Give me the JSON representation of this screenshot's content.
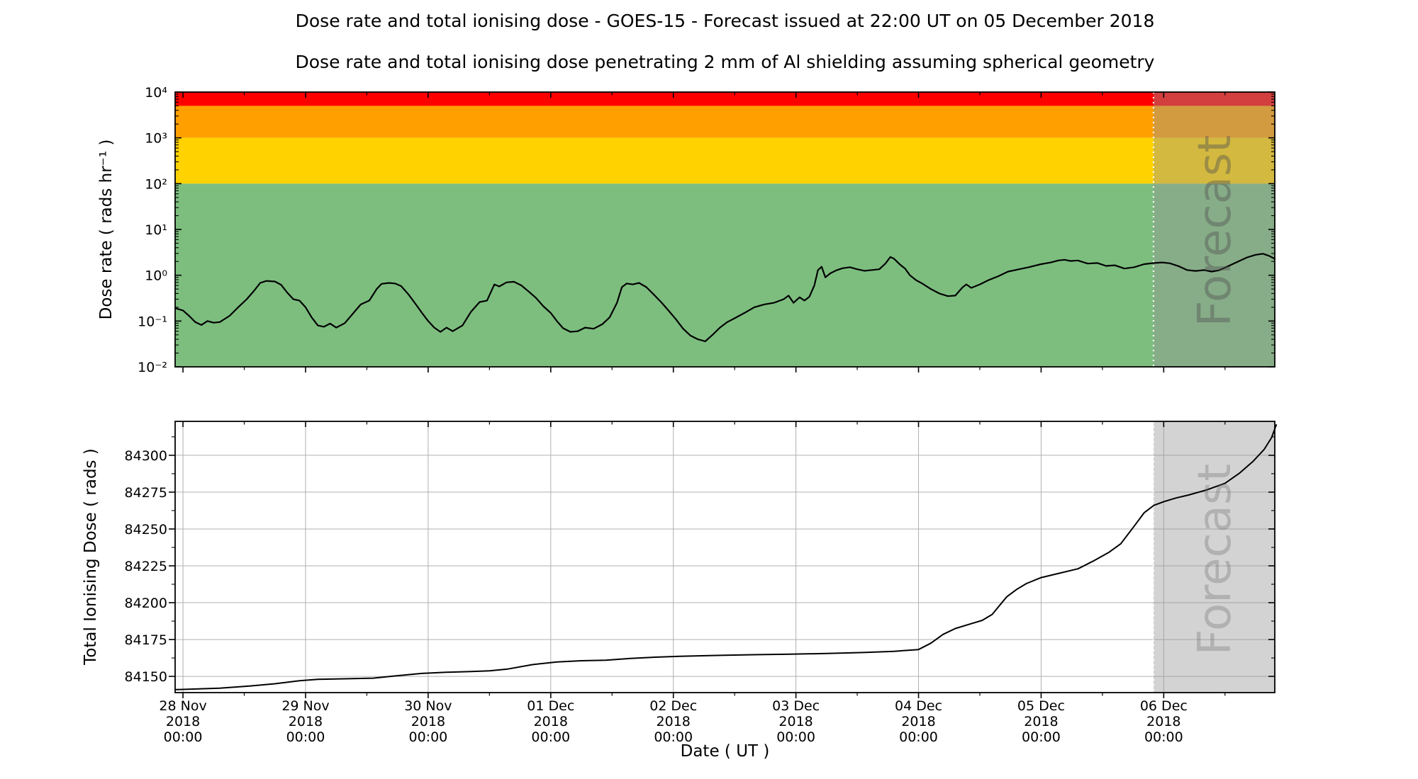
{
  "figure": {
    "title": "Dose rate and total ionising dose - GOES-15 - Forecast issued at 22:00 UT on 05 December 2018",
    "subtitle": "Dose rate and total ionising dose penetrating 2 mm of Al shielding assuming spherical geometry",
    "xlabel": "Date ( UT )",
    "forecast_label": "Forecast",
    "forecast_start_days": 7.9167,
    "x_axis": {
      "xlim_days": [
        -0.064,
        8.906
      ],
      "tick_days": [
        0,
        1,
        2,
        3,
        4,
        5,
        6,
        7,
        8
      ],
      "tick_labels": [
        "28 Nov\n2018\n00:00",
        "29 Nov\n2018\n00:00",
        "30 Nov\n2018\n00:00",
        "01 Dec\n2018\n00:00",
        "02 Dec\n2018\n00:00",
        "03 Dec\n2018\n00:00",
        "04 Dec\n2018\n00:00",
        "05 Dec\n2018\n00:00",
        "06 Dec\n2018\n00:00"
      ],
      "minor_tick_days": [
        0.5,
        1.5,
        2.5,
        3.5,
        4.5,
        5.5,
        6.5,
        7.5,
        8.5
      ]
    },
    "colors": {
      "red_band": "#ff0000",
      "orange_band": "#ff9f00",
      "yellow_band": "#ffd200",
      "green_band": "#7dbe7f",
      "forecast_overlay": "rgba(150,150,150,0.42)",
      "forecast_boundary": "#ffffff",
      "gridline": "#b0b0b0",
      "data_line": "#000000",
      "spine": "#000000"
    }
  },
  "chart_data": [
    {
      "type": "line",
      "name": "dose_rate",
      "ylabel": "Dose rate ( rads hr⁻¹ )",
      "yscale": "log",
      "ylim": [
        0.01,
        10000
      ],
      "ytick_values": [
        10000,
        1000,
        100,
        10,
        1,
        0.1,
        0.01
      ],
      "ytick_labels": [
        "10⁴",
        "10³",
        "10²",
        "10¹",
        "10⁰",
        "10⁻¹",
        "10⁻²"
      ],
      "x_unit": "days since 28 Nov 2018 00:00 UT",
      "alert_bands": [
        {
          "name": "red",
          "from": 5000,
          "to": 10000,
          "color": "#ff0000"
        },
        {
          "name": "orange",
          "from": 1000,
          "to": 5000,
          "color": "#ff9f00"
        },
        {
          "name": "yellow",
          "from": 100,
          "to": 1000,
          "color": "#ffd200"
        },
        {
          "name": "green",
          "from": 0.01,
          "to": 100,
          "color": "#7dbe7f"
        }
      ],
      "points": [
        [
          -0.06,
          0.19
        ],
        [
          0,
          0.17
        ],
        [
          0.05,
          0.13
        ],
        [
          0.1,
          0.095
        ],
        [
          0.15,
          0.082
        ],
        [
          0.2,
          0.1
        ],
        [
          0.25,
          0.092
        ],
        [
          0.3,
          0.095
        ],
        [
          0.38,
          0.13
        ],
        [
          0.45,
          0.2
        ],
        [
          0.52,
          0.3
        ],
        [
          0.58,
          0.46
        ],
        [
          0.63,
          0.68
        ],
        [
          0.68,
          0.75
        ],
        [
          0.75,
          0.73
        ],
        [
          0.8,
          0.62
        ],
        [
          0.85,
          0.42
        ],
        [
          0.9,
          0.3
        ],
        [
          0.95,
          0.28
        ],
        [
          1.0,
          0.2
        ],
        [
          1.05,
          0.12
        ],
        [
          1.1,
          0.08
        ],
        [
          1.15,
          0.075
        ],
        [
          1.2,
          0.088
        ],
        [
          1.25,
          0.072
        ],
        [
          1.32,
          0.09
        ],
        [
          1.4,
          0.16
        ],
        [
          1.45,
          0.23
        ],
        [
          1.52,
          0.28
        ],
        [
          1.58,
          0.5
        ],
        [
          1.62,
          0.65
        ],
        [
          1.68,
          0.68
        ],
        [
          1.73,
          0.66
        ],
        [
          1.78,
          0.58
        ],
        [
          1.84,
          0.38
        ],
        [
          1.9,
          0.23
        ],
        [
          1.95,
          0.15
        ],
        [
          2.0,
          0.1
        ],
        [
          2.05,
          0.072
        ],
        [
          2.1,
          0.058
        ],
        [
          2.15,
          0.072
        ],
        [
          2.2,
          0.06
        ],
        [
          2.28,
          0.08
        ],
        [
          2.35,
          0.16
        ],
        [
          2.42,
          0.26
        ],
        [
          2.48,
          0.28
        ],
        [
          2.54,
          0.63
        ],
        [
          2.58,
          0.57
        ],
        [
          2.64,
          0.7
        ],
        [
          2.7,
          0.72
        ],
        [
          2.76,
          0.6
        ],
        [
          2.82,
          0.44
        ],
        [
          2.88,
          0.32
        ],
        [
          2.94,
          0.21
        ],
        [
          3.0,
          0.15
        ],
        [
          3.05,
          0.1
        ],
        [
          3.1,
          0.07
        ],
        [
          3.16,
          0.058
        ],
        [
          3.22,
          0.06
        ],
        [
          3.28,
          0.072
        ],
        [
          3.35,
          0.068
        ],
        [
          3.42,
          0.085
        ],
        [
          3.48,
          0.12
        ],
        [
          3.54,
          0.25
        ],
        [
          3.58,
          0.55
        ],
        [
          3.62,
          0.66
        ],
        [
          3.67,
          0.63
        ],
        [
          3.72,
          0.68
        ],
        [
          3.78,
          0.55
        ],
        [
          3.84,
          0.38
        ],
        [
          3.9,
          0.26
        ],
        [
          3.96,
          0.17
        ],
        [
          4.02,
          0.11
        ],
        [
          4.08,
          0.068
        ],
        [
          4.14,
          0.048
        ],
        [
          4.2,
          0.04
        ],
        [
          4.26,
          0.036
        ],
        [
          4.32,
          0.05
        ],
        [
          4.38,
          0.072
        ],
        [
          4.44,
          0.095
        ],
        [
          4.5,
          0.115
        ],
        [
          4.58,
          0.15
        ],
        [
          4.66,
          0.2
        ],
        [
          4.74,
          0.23
        ],
        [
          4.82,
          0.25
        ],
        [
          4.9,
          0.3
        ],
        [
          4.94,
          0.36
        ],
        [
          4.98,
          0.25
        ],
        [
          5.03,
          0.33
        ],
        [
          5.07,
          0.28
        ],
        [
          5.11,
          0.34
        ],
        [
          5.15,
          0.6
        ],
        [
          5.18,
          1.3
        ],
        [
          5.21,
          1.53
        ],
        [
          5.24,
          0.9
        ],
        [
          5.28,
          1.1
        ],
        [
          5.33,
          1.28
        ],
        [
          5.38,
          1.42
        ],
        [
          5.44,
          1.5
        ],
        [
          5.5,
          1.35
        ],
        [
          5.56,
          1.25
        ],
        [
          5.62,
          1.3
        ],
        [
          5.68,
          1.35
        ],
        [
          5.73,
          1.8
        ],
        [
          5.77,
          2.5
        ],
        [
          5.8,
          2.3
        ],
        [
          5.85,
          1.7
        ],
        [
          5.89,
          1.4
        ],
        [
          5.93,
          1.0
        ],
        [
          5.98,
          0.78
        ],
        [
          6.03,
          0.66
        ],
        [
          6.1,
          0.5
        ],
        [
          6.17,
          0.4
        ],
        [
          6.24,
          0.35
        ],
        [
          6.3,
          0.36
        ],
        [
          6.36,
          0.55
        ],
        [
          6.39,
          0.63
        ],
        [
          6.43,
          0.53
        ],
        [
          6.5,
          0.63
        ],
        [
          6.57,
          0.78
        ],
        [
          6.65,
          0.95
        ],
        [
          6.73,
          1.2
        ],
        [
          6.82,
          1.35
        ],
        [
          6.9,
          1.5
        ],
        [
          7.0,
          1.75
        ],
        [
          7.08,
          1.9
        ],
        [
          7.14,
          2.1
        ],
        [
          7.19,
          2.18
        ],
        [
          7.24,
          2.05
        ],
        [
          7.3,
          2.1
        ],
        [
          7.38,
          1.8
        ],
        [
          7.46,
          1.85
        ],
        [
          7.53,
          1.6
        ],
        [
          7.6,
          1.65
        ],
        [
          7.68,
          1.4
        ],
        [
          7.76,
          1.5
        ],
        [
          7.84,
          1.75
        ],
        [
          7.92,
          1.85
        ],
        [
          7.99,
          1.9
        ],
        [
          8.05,
          1.82
        ],
        [
          8.12,
          1.58
        ],
        [
          8.19,
          1.3
        ],
        [
          8.26,
          1.24
        ],
        [
          8.33,
          1.3
        ],
        [
          8.39,
          1.2
        ],
        [
          8.45,
          1.28
        ],
        [
          8.53,
          1.6
        ],
        [
          8.6,
          1.95
        ],
        [
          8.68,
          2.45
        ],
        [
          8.75,
          2.8
        ],
        [
          8.81,
          2.95
        ],
        [
          8.86,
          2.65
        ],
        [
          8.91,
          2.25
        ]
      ]
    },
    {
      "type": "line",
      "name": "total_ionising_dose",
      "ylabel": "Total Ionising Dose ( rads )",
      "yscale": "linear",
      "ylim": [
        84139,
        84323
      ],
      "ytick_values": [
        84150,
        84175,
        84200,
        84225,
        84250,
        84275,
        84300
      ],
      "ytick_labels": [
        "84150",
        "84175",
        "84200",
        "84225",
        "84250",
        "84275",
        "84300"
      ],
      "ytick_minor_values": [
        84162.5,
        84187.5,
        84212.5,
        84237.5,
        84262.5,
        84287.5,
        84312.5
      ],
      "grid": true,
      "x_unit": "days since 28 Nov 2018 00:00 UT",
      "points": [
        [
          -0.06,
          84141
        ],
        [
          0.3,
          84142
        ],
        [
          0.55,
          84143.5
        ],
        [
          0.75,
          84145
        ],
        [
          0.95,
          84147
        ],
        [
          1.1,
          84148
        ],
        [
          1.35,
          84148.4
        ],
        [
          1.55,
          84148.8
        ],
        [
          1.75,
          84150.5
        ],
        [
          1.95,
          84152
        ],
        [
          2.15,
          84152.8
        ],
        [
          2.35,
          84153.3
        ],
        [
          2.5,
          84153.8
        ],
        [
          2.65,
          84155
        ],
        [
          2.85,
          84158
        ],
        [
          3.05,
          84159.8
        ],
        [
          3.25,
          84160.6
        ],
        [
          3.45,
          84161
        ],
        [
          3.65,
          84162.2
        ],
        [
          3.85,
          84163
        ],
        [
          4.05,
          84163.6
        ],
        [
          4.35,
          84164.2
        ],
        [
          4.65,
          84164.7
        ],
        [
          4.95,
          84165.1
        ],
        [
          5.25,
          84165.5
        ],
        [
          5.55,
          84166.2
        ],
        [
          5.8,
          84167
        ],
        [
          6.0,
          84168.2
        ],
        [
          6.1,
          84172.5
        ],
        [
          6.2,
          84178.5
        ],
        [
          6.3,
          84182.5
        ],
        [
          6.42,
          84185.5
        ],
        [
          6.52,
          84188
        ],
        [
          6.6,
          84192
        ],
        [
          6.66,
          84198
        ],
        [
          6.72,
          84204
        ],
        [
          6.8,
          84209
        ],
        [
          6.88,
          84213
        ],
        [
          7.0,
          84217
        ],
        [
          7.15,
          84220
        ],
        [
          7.3,
          84223
        ],
        [
          7.42,
          84228
        ],
        [
          7.55,
          84234
        ],
        [
          7.65,
          84240
        ],
        [
          7.76,
          84252
        ],
        [
          7.84,
          84261
        ],
        [
          7.92,
          84266
        ],
        [
          8.0,
          84268.5
        ],
        [
          8.1,
          84271
        ],
        [
          8.2,
          84273
        ],
        [
          8.35,
          84276.5
        ],
        [
          8.5,
          84281
        ],
        [
          8.62,
          84288
        ],
        [
          8.73,
          84296
        ],
        [
          8.82,
          84304
        ],
        [
          8.88,
          84312
        ],
        [
          8.92,
          84321
        ]
      ]
    }
  ]
}
